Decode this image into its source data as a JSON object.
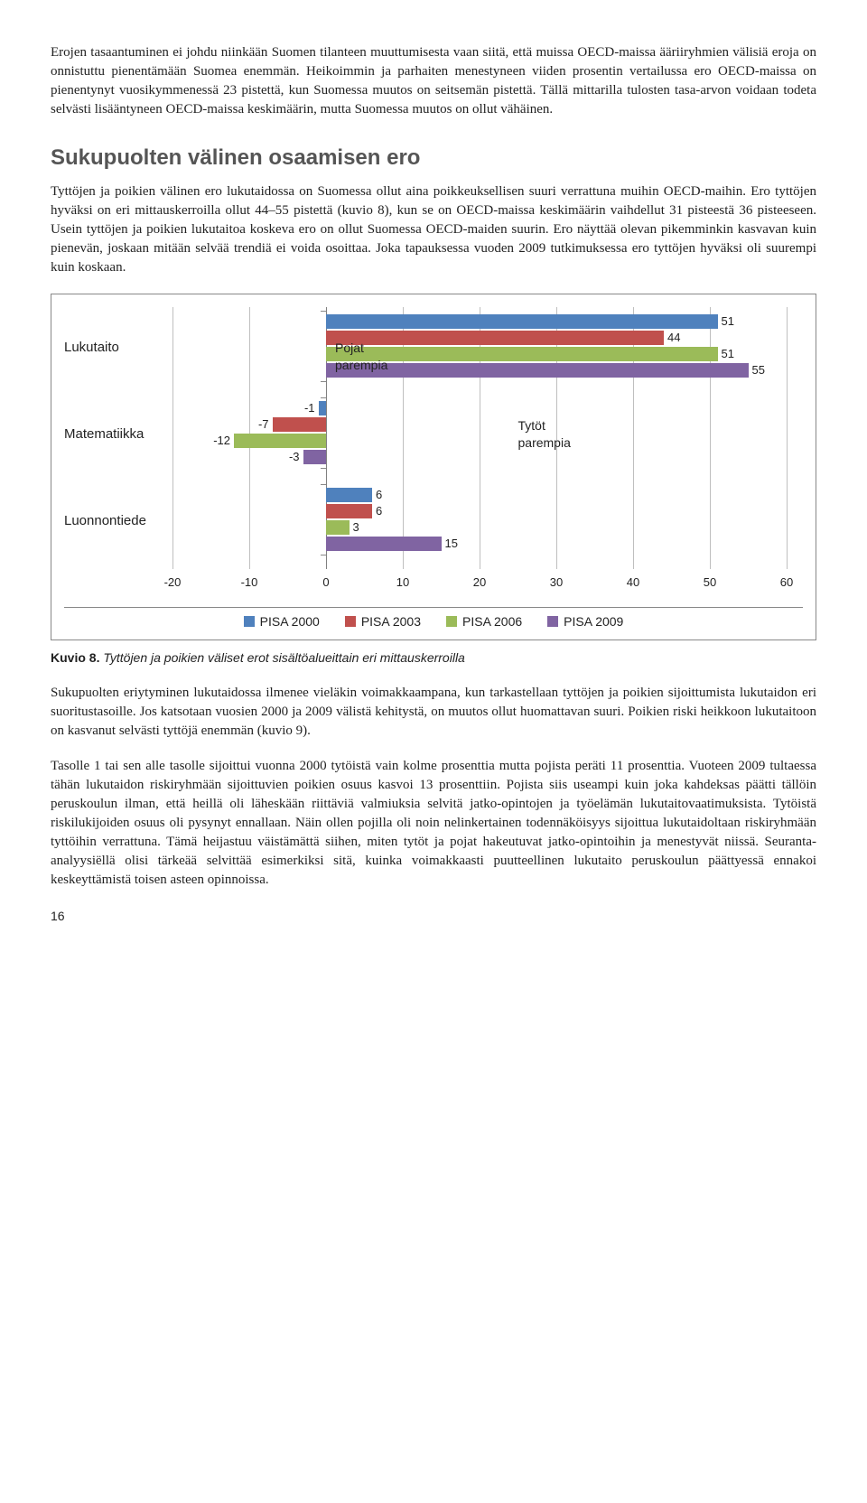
{
  "para1": "Erojen tasaantuminen ei johdu niinkään Suomen tilanteen muuttumisesta vaan siitä, että muissa OECD-maissa ääriiryhmien välisiä eroja on onnistuttu pienentämään Suomea enemmän. Heikoimmin ja parhaiten menestyneen viiden prosentin vertailussa ero OECD-maissa on pienentynyt vuosikymmenessä 23 pistettä, kun Suomessa muutos on seitsemän pistettä. Tällä mittarilla tulosten tasa-arvon voidaan todeta selvästi lisääntyneen OECD-maissa keskimäärin, mutta Suomessa muutos on ollut vähäinen.",
  "heading": "Sukupuolten välinen osaamisen ero",
  "para2": "Tyttöjen ja poikien välinen ero lukutaidossa on Suomessa ollut aina poikkeuksellisen suuri verrattuna muihin OECD-maihin. Ero tyttöjen hyväksi on eri mittauskerroilla ollut 44–55 pistettä (kuvio 8), kun se on OECD-maissa keskimäärin vaihdellut 31 pisteestä 36 pisteeseen. Usein tyttöjen ja poikien lukutaitoa koskeva ero on ollut Suomessa OECD-maiden suurin. Ero näyttää olevan pikemminkin kasvavan kuin pienevän, joskaan mitään selvää trendiä ei voida osoittaa. Joka tapauksessa vuoden 2009 tutkimuksessa ero tyttöjen hyväksi oli suurempi kuin koskaan.",
  "chart": {
    "categories": [
      "Lukutaito",
      "Matematiikka",
      "Luonnontiede"
    ],
    "series": [
      {
        "name": "PISA 2000",
        "color": "#4f81bd",
        "values": [
          51,
          -1,
          6
        ]
      },
      {
        "name": "PISA 2003",
        "color": "#c0504d",
        "values": [
          44,
          -7,
          6
        ]
      },
      {
        "name": "PISA 2006",
        "color": "#9bbb59",
        "values": [
          51,
          -12,
          3
        ]
      },
      {
        "name": "PISA 2009",
        "color": "#8064a2",
        "values": [
          55,
          -3,
          15
        ]
      }
    ],
    "xmin": -20,
    "xmax": 60,
    "xtick_step": 10,
    "grid_color": "#bfbfbf",
    "zero_color": "#808080",
    "annot_left": "Pojat\nparempia",
    "annot_right": "Tytöt\nparempia"
  },
  "caption_bold": "Kuvio 8.",
  "caption_italic": "Tyttöjen ja poikien väliset erot sisältöalueittain eri mittauskerroilla",
  "para3": "Sukupuolten eriytyminen lukutaidossa ilmenee vieläkin voimakkaampana, kun tarkastellaan tyttöjen ja poikien sijoittumista lukutaidon eri suoritustasoille. Jos katsotaan vuosien 2000 ja 2009 välistä kehitystä, on muutos ollut huomattavan suuri. Poikien riski heikkoon lukutaitoon on kasvanut selvästi tyttöjä enemmän (kuvio 9).",
  "para4": "Tasolle 1 tai sen alle tasolle sijoittui vuonna 2000 tytöistä vain kolme prosenttia mutta pojista peräti 11 prosenttia. Vuoteen 2009 tultaessa tähän lukutaidon riskiryhmään sijoittuvien poikien osuus kasvoi 13 prosenttiin. Pojista siis useampi kuin joka kahdeksas päätti tällöin peruskoulun ilman, että heillä oli läheskään riittäviä valmiuksia selvitä jatko-opintojen ja työelämän lukutaitovaatimuksista. Tytöistä riskilukijoiden osuus oli pysynyt ennallaan. Näin ollen pojilla oli noin nelinkertainen todennäköisyys sijoittua lukutaidoltaan riskiryhmään tyttöihin verrattuna. Tämä heijastuu väistämättä siihen, miten tytöt ja pojat hakeutuvat jatko-opintoihin ja menestyvät niissä. Seuranta-analyysiëllä olisi tärkeää selvittää esimerkiksi sitä, kuinka voimakkaasti puutteellinen lukutaito peruskoulun päättyessä ennakoi keskeyttämistä toisen asteen opinnoissa.",
  "pagenum": "16"
}
